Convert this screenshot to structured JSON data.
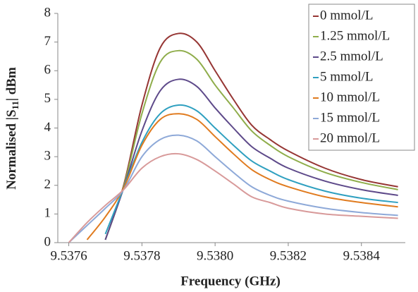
{
  "chart_data": {
    "type": "line",
    "xlabel": "Frequency (GHz)",
    "ylabel": [
      "Normalised |S",
      "11",
      "| dBm"
    ],
    "x": [
      9.5376,
      9.53765,
      9.5377,
      9.53775,
      9.5378,
      9.53785,
      9.5379,
      9.53795,
      9.538,
      9.53805,
      9.5381,
      9.53815,
      9.5382,
      9.5383,
      9.5384,
      9.5385
    ],
    "xlim": [
      9.53757,
      9.53852
    ],
    "xticks": [
      9.5376,
      9.5378,
      {
        "value": 9.538,
        "label": "9.5380"
      },
      9.5382,
      9.5384
    ],
    "ylim": [
      0,
      8
    ],
    "yticks": [
      0,
      1,
      2,
      3,
      4,
      5,
      6,
      7,
      8
    ],
    "grid": false,
    "legend": "upper right",
    "series": [
      {
        "name": "0 mmol/L",
        "color": "#963634",
        "values": [
          null,
          null,
          0.1,
          2.0,
          4.8,
          6.8,
          7.3,
          7.0,
          6.0,
          5.0,
          4.1,
          3.6,
          3.2,
          2.6,
          2.2,
          1.95
        ]
      },
      {
        "name": "1.25 mmol/L",
        "color": "#8fad4b",
        "values": [
          null,
          null,
          0.1,
          1.95,
          4.5,
          6.3,
          6.7,
          6.4,
          5.5,
          4.7,
          3.9,
          3.4,
          3.0,
          2.45,
          2.1,
          1.85
        ]
      },
      {
        "name": "2.5 mmol/L",
        "color": "#5e4a8a",
        "values": [
          null,
          null,
          0.1,
          1.9,
          3.9,
          5.3,
          5.7,
          5.45,
          4.7,
          4.0,
          3.35,
          2.95,
          2.6,
          2.15,
          1.85,
          1.65
        ]
      },
      {
        "name": "5 mmol/L",
        "color": "#2fa0c0",
        "values": [
          null,
          null,
          0.3,
          1.9,
          3.5,
          4.5,
          4.8,
          4.6,
          4.0,
          3.4,
          2.85,
          2.5,
          2.2,
          1.8,
          1.55,
          1.4
        ]
      },
      {
        "name": "10 mmol/L",
        "color": "#e07b1f",
        "values": [
          null,
          0.1,
          0.9,
          1.9,
          3.4,
          4.3,
          4.5,
          4.3,
          3.7,
          3.1,
          2.55,
          2.2,
          1.95,
          1.6,
          1.4,
          1.25
        ]
      },
      {
        "name": "15 mmol/L",
        "color": "#8ea9d8",
        "values": [
          0,
          0.6,
          1.2,
          1.85,
          3.0,
          3.6,
          3.75,
          3.55,
          3.0,
          2.45,
          1.95,
          1.65,
          1.45,
          1.2,
          1.05,
          0.95
        ]
      },
      {
        "name": "20 mmol/L",
        "color": "#d89a9a",
        "values": [
          0,
          0.7,
          1.3,
          1.85,
          2.6,
          3.0,
          3.1,
          2.9,
          2.5,
          2.05,
          1.6,
          1.4,
          1.2,
          1.0,
          0.92,
          0.85
        ]
      }
    ]
  }
}
